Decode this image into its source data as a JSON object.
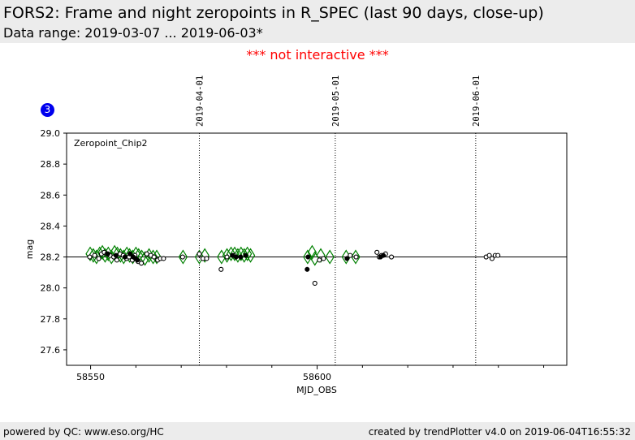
{
  "header": {
    "title": "FORS2: Frame and night zeropoints in R_SPEC (last 90 days, close-up)",
    "subtitle": "Data range: 2019-03-07 ... 2019-06-03*"
  },
  "notice": "*** not interactive ***",
  "badge": "3",
  "footer": {
    "left": "powered by QC: www.eso.org/HC",
    "right": "created by trendPlotter v4.0 on 2019-06-04T16:55:32"
  },
  "colors": {
    "diamond": "#008000",
    "frame_point_edge": "#000000",
    "night_point": "#000000",
    "notice": "#ff0000",
    "badge": "#0000ee"
  },
  "chart_data": {
    "type": "scatter",
    "panel_label": "Zeropoint_Chip2",
    "xlabel": "MJD_OBS",
    "ylabel": "mag",
    "xlim": [
      58544.7,
      58655.1
    ],
    "ylim": [
      27.5,
      29.0
    ],
    "xticks": [
      58550,
      58600
    ],
    "xticks_minor": [
      58560,
      58570,
      58580,
      58590,
      58610,
      58620,
      58630,
      58640,
      58650
    ],
    "yticks": [
      27.6,
      27.8,
      28.0,
      28.2,
      28.4,
      28.6,
      28.8,
      29.0
    ],
    "reference_line": 28.2,
    "date_markers": [
      {
        "mjd": 58574.0,
        "label": "2019-04-01"
      },
      {
        "mjd": 58604.0,
        "label": "2019-05-01"
      },
      {
        "mjd": 58635.0,
        "label": "2019-06-01"
      }
    ],
    "series": [
      {
        "marker": "diamond",
        "x": [
          58549.9,
          58550.6,
          58551.3,
          58552.0,
          58552.6,
          58553.2,
          58553.9,
          58554.6,
          58555.3,
          58555.9,
          58556.6,
          58557.3,
          58558.0,
          58558.6,
          58559.3,
          58560.0,
          58560.6,
          58561.3,
          58562.0,
          58562.9,
          58563.8,
          58564.6,
          58570.4,
          58574.0,
          58575.2,
          58578.9,
          58580.1,
          58581.0,
          58581.8,
          58582.5,
          58583.2,
          58583.9,
          58584.6,
          58585.3,
          58597.9,
          58598.9,
          58599.5,
          58600.8,
          58602.8,
          58606.4,
          58608.5
        ],
        "y": [
          28.22,
          28.21,
          28.2,
          28.22,
          28.23,
          28.21,
          28.22,
          28.2,
          28.23,
          28.22,
          28.21,
          28.2,
          28.22,
          28.21,
          28.2,
          28.22,
          28.21,
          28.2,
          28.19,
          28.21,
          28.2,
          28.2,
          28.2,
          28.2,
          28.21,
          28.2,
          28.21,
          28.22,
          28.22,
          28.21,
          28.22,
          28.21,
          28.22,
          28.21,
          28.2,
          28.23,
          28.19,
          28.21,
          28.2,
          28.2,
          28.2
        ]
      },
      {
        "marker": "open-circle",
        "x": [
          58549.8,
          58550.9,
          58551.8,
          58552.4,
          58553.0,
          58553.6,
          58554.3,
          58555.1,
          58555.8,
          58556.5,
          58557.2,
          58557.9,
          58558.5,
          58559.2,
          58559.8,
          58560.5,
          58561.2,
          58562.4,
          58563.3,
          58564.0,
          58564.8,
          58565.4,
          58566.1,
          58570.3,
          58574.0,
          58574.8,
          58575.6,
          58578.8,
          58580.1,
          58581.6,
          58599.5,
          58600.5,
          58601.4,
          58607.3,
          58608.6,
          58613.2,
          58613.7,
          58614.2,
          58615.1,
          58616.4,
          58637.3,
          58638.0,
          58638.6,
          58639.3,
          58639.9
        ],
        "y": [
          28.2,
          28.21,
          28.19,
          28.22,
          28.23,
          28.22,
          28.21,
          28.2,
          28.18,
          28.22,
          28.21,
          28.19,
          28.2,
          28.18,
          28.21,
          28.17,
          28.16,
          28.22,
          28.21,
          28.2,
          28.18,
          28.19,
          28.19,
          28.2,
          28.22,
          28.19,
          28.19,
          28.12,
          28.2,
          28.21,
          28.03,
          28.18,
          28.19,
          28.21,
          28.2,
          28.23,
          28.2,
          28.21,
          28.22,
          28.2,
          28.2,
          28.21,
          28.19,
          28.21,
          28.21
        ]
      },
      {
        "marker": "filled-circle",
        "x": [
          58553.8,
          58555.6,
          58557.6,
          58558.7,
          58559.4,
          58559.9,
          58560.3,
          58581.3,
          58582.1,
          58583.1,
          58584.2,
          58597.8,
          58598.0,
          58606.6,
          58614.0,
          58614.6
        ],
        "y": [
          28.22,
          28.21,
          28.2,
          28.22,
          28.2,
          28.19,
          28.18,
          28.21,
          28.2,
          28.2,
          28.21,
          28.12,
          28.2,
          28.19,
          28.2,
          28.21
        ]
      }
    ]
  }
}
